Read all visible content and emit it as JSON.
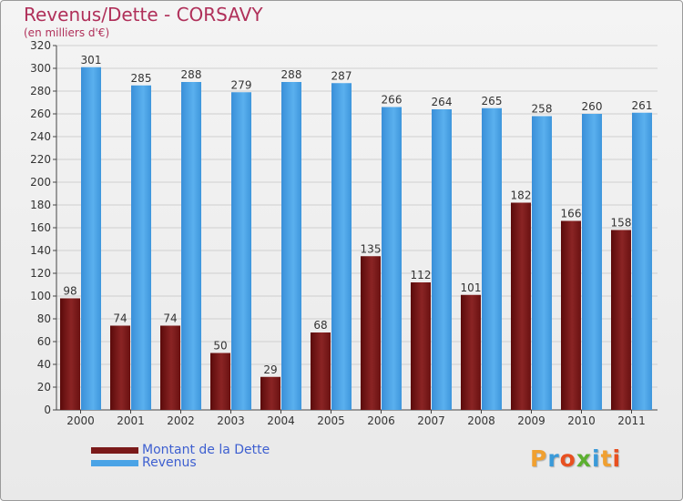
{
  "chart_data": {
    "type": "bar",
    "title": "Revenus/Dette - CORSAVY",
    "subtitle": "(en milliers d'€)",
    "categories": [
      "2000",
      "2001",
      "2002",
      "2003",
      "2004",
      "2005",
      "2006",
      "2007",
      "2008",
      "2009",
      "2010",
      "2011"
    ],
    "series": [
      {
        "name": "Montant de la Dette",
        "color": "#7a1a1a",
        "values": [
          98,
          74,
          74,
          50,
          29,
          68,
          135,
          112,
          101,
          182,
          166,
          158
        ]
      },
      {
        "name": "Revenus",
        "color": "#4aa3e6",
        "values": [
          301,
          285,
          288,
          279,
          288,
          287,
          266,
          264,
          265,
          258,
          260,
          261
        ]
      }
    ],
    "ylim": [
      0,
      320
    ],
    "ytick_step": 20,
    "grid": true,
    "legend": "bottom-left"
  },
  "watermark": {
    "letters": [
      "P",
      "r",
      "o",
      "x",
      "i",
      "t",
      "i"
    ],
    "colors": [
      "#f0a030",
      "#3a9ad9",
      "#e85020",
      "#5cb030",
      "#3a9ad9",
      "#f0a030",
      "#e85020"
    ]
  }
}
